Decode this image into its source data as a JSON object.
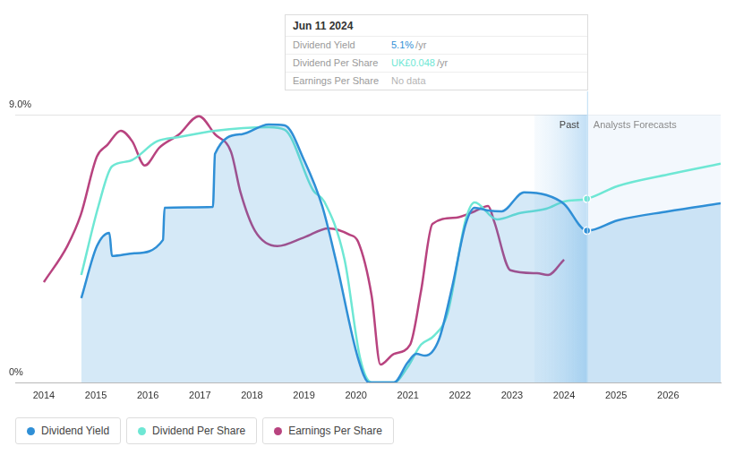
{
  "chart_data": {
    "type": "line",
    "xlim": [
      2013.45,
      2027.01
    ],
    "xticks": [
      2014,
      2015,
      2016,
      2017,
      2018,
      2019,
      2020,
      2021,
      2022,
      2023,
      2024,
      2025,
      2026
    ],
    "ylim": [
      0,
      9
    ],
    "yticks": [
      {
        "value": 0,
        "label": "0%"
      },
      {
        "value": 9,
        "label": "9.0%"
      }
    ],
    "grid": true,
    "legend": "bottom",
    "annotations": {
      "past": "Past",
      "forecast": "Analysts Forecasts",
      "tooltip": {
        "date": "Jun 11 2024",
        "rows": [
          {
            "label": "Dividend Yield",
            "value": "5.1%",
            "unit": "/yr"
          },
          {
            "label": "Dividend Per Share",
            "value": "UK£0.048",
            "unit": "/yr"
          },
          {
            "label": "Earnings Per Share",
            "value": "No data"
          }
        ]
      }
    },
    "series": [
      {
        "name": "Dividend Yield",
        "color": "#2f8fd6",
        "x": [
          2014.72,
          2015.02,
          2015.26,
          2015.31,
          2015.74,
          2016.29,
          2016.32,
          2017.25,
          2017.29,
          2017.8,
          2018.32,
          2018.63,
          2019.01,
          2019.35,
          2019.61,
          2020.04,
          2020.25,
          2020.73,
          2020.99,
          2021.16,
          2021.33,
          2021.59,
          2021.85,
          2022.11,
          2022.28,
          2022.54,
          2022.8,
          2023.23,
          2023.66,
          2024.0,
          2024.44,
          2025.03,
          2026.0,
          2027.01
        ],
        "values": [
          2.83,
          4.58,
          5.03,
          4.25,
          4.34,
          4.79,
          5.87,
          5.9,
          7.68,
          8.34,
          8.67,
          8.64,
          7.44,
          5.93,
          4.13,
          0.81,
          0,
          0,
          0.66,
          0.96,
          0.9,
          1.42,
          3.22,
          5.33,
          5.87,
          5.78,
          5.75,
          6.39,
          6.3,
          6.0,
          5.1,
          5.45,
          5.75,
          6.02
        ]
      },
      {
        "name": "Dividend Per Share",
        "color": "#6ee7d4",
        "x": [
          2014.72,
          2015.05,
          2015.31,
          2015.65,
          2016.17,
          2016.6,
          2017.29,
          2018.32,
          2018.63,
          2019.18,
          2019.39,
          2019.78,
          2020.08,
          2020.3,
          2020.73,
          2020.99,
          2021.25,
          2021.5,
          2021.76,
          2022.11,
          2022.28,
          2022.71,
          2023.14,
          2023.66,
          2024.0,
          2024.44,
          2025.03,
          2026.0,
          2027.01
        ],
        "values": [
          3.61,
          5.93,
          7.26,
          7.44,
          8.1,
          8.25,
          8.46,
          8.58,
          8.49,
          6.45,
          6.08,
          4.13,
          0.81,
          0,
          0,
          0.51,
          1.27,
          1.57,
          2.32,
          5.48,
          6.05,
          5.48,
          5.69,
          5.84,
          6.08,
          6.17,
          6.6,
          6.99,
          7.35
        ]
      },
      {
        "name": "Earnings Per Share",
        "color": "#b8437f",
        "x": [
          2014.0,
          2014.45,
          2014.71,
          2015.02,
          2015.22,
          2015.48,
          2015.7,
          2015.94,
          2016.22,
          2016.6,
          2016.98,
          2017.29,
          2017.6,
          2017.78,
          2018.06,
          2018.49,
          2019.01,
          2019.47,
          2019.87,
          2020.04,
          2020.3,
          2020.47,
          2020.73,
          2021.04,
          2021.25,
          2021.47,
          2021.93,
          2022.28,
          2022.54,
          2022.66,
          2022.97,
          2023.48,
          2023.69,
          2024.0
        ],
        "values": [
          3.37,
          4.58,
          5.63,
          7.59,
          7.98,
          8.46,
          8.1,
          7.29,
          7.89,
          8.34,
          8.95,
          8.34,
          7.74,
          6.39,
          5.09,
          4.58,
          4.88,
          5.18,
          4.97,
          4.73,
          2.92,
          0.6,
          0.96,
          1.27,
          3.07,
          5.33,
          5.54,
          5.75,
          5.93,
          5.39,
          3.77,
          3.67,
          3.61,
          4.13
        ]
      }
    ]
  }
}
